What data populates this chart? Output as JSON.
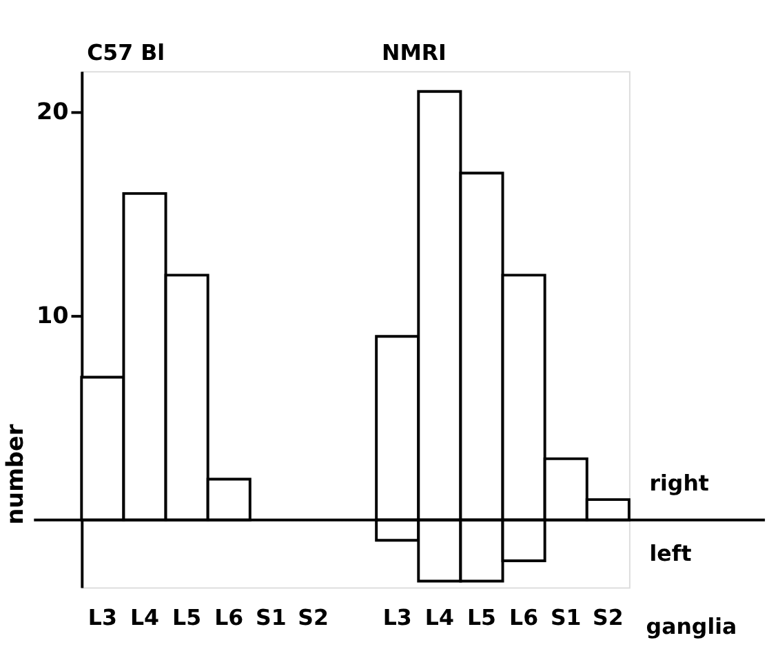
{
  "chart_data": {
    "type": "bar",
    "ylabel": "number",
    "xlabel": "ganglia",
    "stacked": true,
    "categories": [
      "L3",
      "L4",
      "L5",
      "L6",
      "S1",
      "S2",
      null,
      "L3",
      "L4",
      "L5",
      "L6",
      "S1",
      "S2"
    ],
    "series": [
      {
        "name": "right",
        "color": "#ffffff",
        "values": [
          7,
          16,
          12,
          2,
          null,
          null,
          null,
          9,
          21,
          17,
          12,
          3,
          1
        ]
      },
      {
        "name": "left",
        "color": "#ffffff",
        "values": [
          null,
          null,
          null,
          null,
          null,
          null,
          null,
          -1,
          -3,
          -3,
          -2,
          null,
          null
        ]
      }
    ],
    "ylim": [
      -3.3,
      22
    ],
    "yticks": [
      10,
      20
    ],
    "grid": false,
    "ref_lines": [
      {
        "axis": "y",
        "value": 0
      }
    ],
    "annotations": [
      "C57 Bl",
      "NMRI"
    ]
  }
}
